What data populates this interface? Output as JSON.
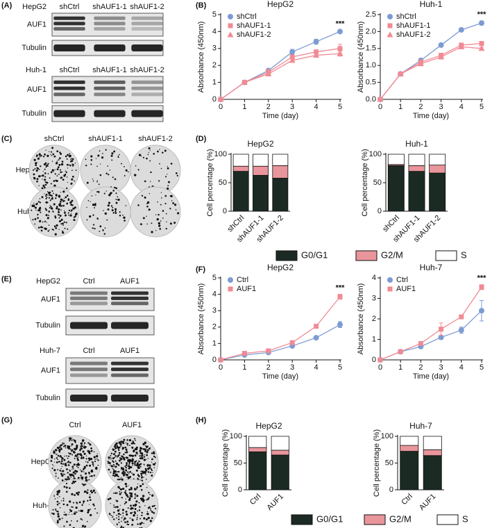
{
  "panels": [
    "(A)",
    "(B)",
    "(C)",
    "(D)",
    "(E)",
    "(F)",
    "(G)",
    "(H)"
  ],
  "blots": [
    {
      "title": "HepG2",
      "lanes": [
        "shCtrl",
        "shAUF1-1",
        "shAUF1-2"
      ],
      "rows": [
        "AUF1",
        "Tubulin"
      ]
    },
    {
      "title": "Huh-1",
      "lanes": [
        "shCtrl",
        "shAUF1-1",
        "shAUF1-2"
      ],
      "rows": [
        "AUF1",
        "Tubulin"
      ]
    },
    {
      "title": "HepG2",
      "lanes": [
        "Ctrl",
        "AUF1"
      ],
      "rows": [
        "AUF1",
        "Tubulin"
      ]
    },
    {
      "title": "Huh-7",
      "lanes": [
        "Ctrl",
        "AUF1"
      ],
      "rows": [
        "AUF1",
        "Tubulin"
      ]
    }
  ],
  "colonies": [
    {
      "columns": [
        "shCtrl",
        "shAUF1-1",
        "shAUF1-2"
      ],
      "rows": [
        "HepG2",
        "Huh-1"
      ]
    },
    {
      "columns": [
        "Ctrl",
        "AUF1"
      ],
      "rows": [
        "HepG2",
        "Huh-7"
      ]
    }
  ],
  "chart_data": [
    {
      "type": "line",
      "title": "HepG2",
      "x_label": "Time (day)",
      "y_label": "Absorbance (450nm)",
      "annotation": "***",
      "x": [
        0,
        1,
        2,
        3,
        4,
        5
      ],
      "xlim": [
        0,
        5
      ],
      "xticks": [
        0,
        1,
        2,
        3,
        4,
        5
      ],
      "ylim": [
        0,
        5
      ],
      "yticks": [
        0,
        1,
        2,
        3,
        4,
        5
      ],
      "series": [
        {
          "name": "shCtrl",
          "color": "#7d9bd2",
          "marker": "circle",
          "values": [
            0,
            1.0,
            1.7,
            2.8,
            3.4,
            4.0
          ],
          "errors": [
            0,
            0.05,
            0.1,
            0.15,
            0.15,
            0.08
          ]
        },
        {
          "name": "shAUF1-1",
          "color": "#f08a94",
          "marker": "square",
          "values": [
            0,
            1.0,
            1.6,
            2.5,
            2.8,
            3.0
          ],
          "errors": [
            0,
            0.05,
            0.15,
            0.1,
            0.1,
            0.25
          ]
        },
        {
          "name": "shAUF1-2",
          "color": "#f08a94",
          "marker": "triangle",
          "values": [
            0,
            1.0,
            1.5,
            2.3,
            2.6,
            2.7
          ],
          "errors": [
            0,
            0.05,
            0.1,
            0.1,
            0.1,
            0.15
          ]
        }
      ]
    },
    {
      "type": "line",
      "title": "Huh-1",
      "x_label": "Time (day)",
      "y_label": "Absorbance (450nm)",
      "annotation": "***",
      "x": [
        0,
        1,
        2,
        3,
        4,
        5
      ],
      "xlim": [
        0,
        5
      ],
      "xticks": [
        0,
        1,
        2,
        3,
        4,
        5
      ],
      "ylim": [
        0,
        2.5
      ],
      "yticks": [
        {
          "value": 0,
          "label": "0.0"
        },
        0.5,
        {
          "value": 1,
          "label": "1.0"
        },
        1.5,
        {
          "value": 2,
          "label": "2.0"
        },
        2.5
      ],
      "series": [
        {
          "name": "shCtrl",
          "color": "#7d9bd2",
          "marker": "circle",
          "values": [
            0,
            0.75,
            1.15,
            1.6,
            2.05,
            2.25
          ],
          "errors": [
            0,
            0.02,
            0.03,
            0.03,
            0.05,
            0.06
          ]
        },
        {
          "name": "shAUF1-1",
          "color": "#f08a94",
          "marker": "square",
          "values": [
            0,
            0.75,
            1.1,
            1.3,
            1.6,
            1.65
          ],
          "errors": [
            0,
            0.02,
            0.03,
            0.04,
            0.06,
            0.05
          ]
        },
        {
          "name": "shAUF1-2",
          "color": "#f08a94",
          "marker": "triangle",
          "values": [
            0,
            0.75,
            1.05,
            1.25,
            1.55,
            1.5
          ],
          "errors": [
            0,
            0.02,
            0.03,
            0.03,
            0.05,
            0.05
          ]
        }
      ]
    },
    {
      "type": "bar",
      "stacked": true,
      "title": "HepG2",
      "y_label": "Cell percentage (%)",
      "legend": "bottom",
      "categories": [
        "shCtrl",
        "shAUF1-1",
        "shAUF1-2"
      ],
      "ylim": [
        0,
        100
      ],
      "yticks": [
        0,
        50,
        100
      ],
      "series": [
        {
          "name": "G0/G1",
          "color": "#1b2a22",
          "values": [
            70,
            63,
            58
          ]
        },
        {
          "name": "G2/M",
          "color": "#e8959b",
          "values": [
            9,
            16,
            22
          ]
        },
        {
          "name": "S",
          "color": "#ffffff",
          "values": [
            21,
            21,
            20
          ]
        }
      ]
    },
    {
      "type": "bar",
      "stacked": true,
      "title": "Huh-1",
      "y_label": "Cell percentage (%)",
      "categories": [
        "shCtrl",
        "shAUF1-1",
        "shAUF1-2"
      ],
      "ylim": [
        0,
        100
      ],
      "yticks": [
        0,
        50,
        100
      ],
      "series": [
        {
          "color": "#1b2a22",
          "values": [
            80,
            70,
            67
          ]
        },
        {
          "color": "#e8959b",
          "values": [
            2,
            10,
            14
          ]
        },
        {
          "color": "#ffffff",
          "values": [
            18,
            20,
            19
          ]
        }
      ]
    },
    {
      "type": "line",
      "title": "HepG2",
      "x_label": "Time (day)",
      "y_label": "Absorbance (450nm)",
      "annotation": "***",
      "x": [
        0,
        1,
        2,
        3,
        4,
        5
      ],
      "xlim": [
        0,
        5
      ],
      "xticks": [
        0,
        1,
        2,
        3,
        4,
        5
      ],
      "ylim": [
        0,
        5
      ],
      "yticks": [
        0,
        1,
        2,
        3,
        4,
        5
      ],
      "series": [
        {
          "name": "Ctrl",
          "color": "#7d9bd2",
          "marker": "circle",
          "values": [
            0,
            0.3,
            0.45,
            0.85,
            1.35,
            2.15
          ],
          "errors": [
            0,
            0.05,
            0.05,
            0.05,
            0.08,
            0.18
          ]
        },
        {
          "name": "AUF1",
          "color": "#f08a94",
          "marker": "square",
          "values": [
            0,
            0.4,
            0.55,
            1.05,
            2.05,
            3.85
          ],
          "errors": [
            0,
            0.05,
            0.05,
            0.06,
            0.1,
            0.15
          ]
        }
      ]
    },
    {
      "type": "line",
      "title": "Huh-7",
      "x_label": "Time (day)",
      "y_label": "Absorbance (450nm)",
      "annotation": "***",
      "x": [
        0,
        1,
        2,
        3,
        4,
        5
      ],
      "xlim": [
        0,
        5
      ],
      "xticks": [
        0,
        1,
        2,
        3,
        4,
        5
      ],
      "ylim": [
        0,
        4
      ],
      "yticks": [
        0,
        1,
        2,
        3,
        4
      ],
      "series": [
        {
          "name": "Ctrl",
          "color": "#7d9bd2",
          "marker": "circle",
          "values": [
            0,
            0.4,
            0.65,
            1.1,
            1.45,
            2.4
          ],
          "errors": [
            0,
            0.03,
            0.05,
            0.1,
            0.15,
            0.5
          ]
        },
        {
          "name": "AUF1",
          "color": "#f08a94",
          "marker": "square",
          "values": [
            0,
            0.4,
            0.8,
            1.5,
            2.1,
            3.55
          ],
          "errors": [
            0,
            0.03,
            0.05,
            0.3,
            0.08,
            0.12
          ]
        }
      ]
    },
    {
      "type": "bar",
      "stacked": true,
      "title": "HepG2",
      "y_label": "Cell percentage (%)",
      "legend": "bottom",
      "categories": [
        "Ctrl",
        "AUF1"
      ],
      "ylim": [
        0,
        100
      ],
      "yticks": [
        0,
        50,
        100
      ],
      "series": [
        {
          "name": "G0/G1",
          "color": "#1b2a22",
          "values": [
            71,
            65
          ]
        },
        {
          "name": "G2/M",
          "color": "#e8959b",
          "values": [
            8,
            9
          ]
        },
        {
          "name": "S",
          "color": "#ffffff",
          "values": [
            21,
            26
          ]
        }
      ]
    },
    {
      "type": "bar",
      "stacked": true,
      "title": "Huh-7",
      "y_label": "Cell percentage (%)",
      "categories": [
        "Ctrl",
        "AUF1"
      ],
      "ylim": [
        0,
        100
      ],
      "yticks": [
        0,
        50,
        100
      ],
      "series": [
        {
          "color": "#1b2a22",
          "values": [
            72,
            64
          ]
        },
        {
          "color": "#e8959b",
          "values": [
            11,
            11
          ]
        },
        {
          "color": "#ffffff",
          "values": [
            17,
            25
          ]
        }
      ]
    }
  ]
}
